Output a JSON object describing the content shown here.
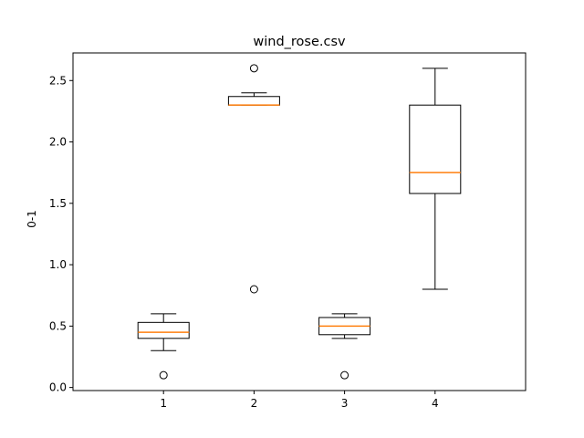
{
  "chart_data": {
    "type": "box",
    "title": "wind_rose.csv",
    "xlabel": "",
    "ylabel": "0-1",
    "categories": [
      "1",
      "2",
      "3",
      "4"
    ],
    "ylim": [
      -0.025,
      2.725
    ],
    "yticks": [
      0.0,
      0.5,
      1.0,
      1.5,
      2.0,
      2.5
    ],
    "ytick_labels": [
      "0.0",
      "0.5",
      "1.0",
      "1.5",
      "2.0",
      "2.5"
    ],
    "grid": false,
    "boxes": [
      {
        "category": "1",
        "whisker_low": 0.3,
        "q1": 0.4,
        "median": 0.45,
        "q3": 0.53,
        "whisker_high": 0.6,
        "outliers": [
          0.1
        ]
      },
      {
        "category": "2",
        "whisker_low": 2.3,
        "q1": 2.3,
        "median": 2.3,
        "q3": 2.37,
        "whisker_high": 2.4,
        "outliers": [
          2.6,
          0.8
        ]
      },
      {
        "category": "3",
        "whisker_low": 0.4,
        "q1": 0.43,
        "median": 0.5,
        "q3": 0.57,
        "whisker_high": 0.6,
        "outliers": [
          0.1
        ]
      },
      {
        "category": "4",
        "whisker_low": 0.8,
        "q1": 1.58,
        "median": 1.75,
        "q3": 2.3,
        "whisker_high": 2.6,
        "outliers": []
      }
    ],
    "colors": {
      "box": "#000000",
      "median": "#ff7f0e",
      "outlier": "#000000"
    }
  }
}
